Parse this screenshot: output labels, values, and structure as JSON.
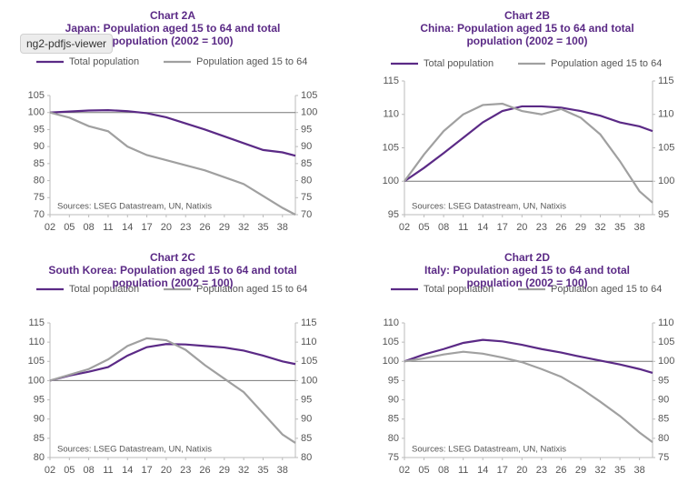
{
  "tooltip": "ng2-pdfjs-viewer",
  "chart_data": [
    {
      "type": "line",
      "chart_label": "Chart 2A",
      "title": "Japan: Population aged 15 to 64 and total population (2002 = 100)",
      "note": "Sources: LSEG Datastream, UN, Natixis",
      "baseline": 100,
      "x": [
        2,
        5,
        8,
        11,
        14,
        17,
        20,
        23,
        26,
        29,
        32,
        35,
        38,
        40
      ],
      "series": [
        {
          "name": "Total population",
          "color": "#5b2a86",
          "values": [
            100,
            100.3,
            100.6,
            100.7,
            100.4,
            99.8,
            98.6,
            96.8,
            95,
            93,
            91,
            89,
            88.3,
            87.3
          ]
        },
        {
          "name": "Population aged 15 to 64",
          "color": "#a0a0a0",
          "values": [
            100,
            98.5,
            96,
            94.5,
            90,
            87.5,
            86,
            84.5,
            83,
            81,
            79,
            75.5,
            72,
            70
          ]
        }
      ],
      "xlim": [
        2,
        40
      ],
      "xticks": [
        {
          "value": 2,
          "label": "02"
        },
        {
          "value": 5,
          "label": "05"
        },
        {
          "value": 8,
          "label": "08"
        },
        11,
        14,
        17,
        20,
        23,
        26,
        29,
        32,
        35,
        38
      ],
      "ylim": [
        70,
        105
      ],
      "yticks": [
        70,
        75,
        80,
        85,
        90,
        95,
        100,
        105
      ]
    },
    {
      "type": "line",
      "chart_label": "Chart 2B",
      "title": "China: Population aged 15 to 64 and total population (2002 = 100)",
      "note": "Sources: LSEG Datastream, UN, Natixis",
      "baseline": 100,
      "x": [
        2,
        5,
        8,
        11,
        14,
        17,
        20,
        23,
        26,
        29,
        32,
        35,
        38,
        40
      ],
      "series": [
        {
          "name": "Total population",
          "color": "#5b2a86",
          "values": [
            100,
            102,
            104.2,
            106.5,
            108.8,
            110.5,
            111.2,
            111.2,
            111,
            110.5,
            109.8,
            108.8,
            108.2,
            107.5
          ]
        },
        {
          "name": "Population aged 15 to 64",
          "color": "#a0a0a0",
          "values": [
            100,
            104,
            107.5,
            110,
            111.4,
            111.6,
            110.5,
            110,
            110.8,
            109.5,
            107,
            103,
            98.5,
            96.8
          ]
        }
      ],
      "xlim": [
        2,
        40
      ],
      "xticks": [
        {
          "value": 2,
          "label": "02"
        },
        {
          "value": 5,
          "label": "05"
        },
        {
          "value": 8,
          "label": "08"
        },
        11,
        14,
        17,
        20,
        23,
        26,
        29,
        32,
        35,
        38
      ],
      "ylim": [
        95,
        115
      ],
      "yticks": [
        95,
        100,
        105,
        110,
        115
      ]
    },
    {
      "type": "line",
      "chart_label": "Chart 2C",
      "title": "South Korea: Population aged 15 to 64 and total population (2002 = 100)",
      "note": "Sources: LSEG Datastream, UN, Natixis",
      "baseline": 100,
      "x": [
        2,
        5,
        8,
        11,
        14,
        17,
        20,
        23,
        26,
        29,
        32,
        35,
        38,
        40
      ],
      "series": [
        {
          "name": "Total population",
          "color": "#5b2a86",
          "values": [
            100,
            101.3,
            102.3,
            103.5,
            106.5,
            108.7,
            109.5,
            109.4,
            109,
            108.6,
            107.8,
            106.5,
            105,
            104.3
          ]
        },
        {
          "name": "Population aged 15 to 64",
          "color": "#a0a0a0",
          "values": [
            100,
            101.5,
            103,
            105.5,
            109,
            111,
            110.5,
            108,
            104,
            100.5,
            97,
            91.5,
            86,
            83.8
          ]
        }
      ],
      "xlim": [
        2,
        40
      ],
      "xticks": [
        {
          "value": 2,
          "label": "02"
        },
        {
          "value": 5,
          "label": "05"
        },
        {
          "value": 8,
          "label": "08"
        },
        11,
        14,
        17,
        20,
        23,
        26,
        29,
        32,
        35,
        38
      ],
      "ylim": [
        80,
        115
      ],
      "yticks": [
        80,
        85,
        90,
        95,
        100,
        105,
        110,
        115
      ]
    },
    {
      "type": "line",
      "chart_label": "Chart 2D",
      "title": "Italy: Population aged 15 to 64 and total population (2002 = 100)",
      "note": "Sources: LSEG Datastream, UN, Natixis",
      "baseline": 100,
      "x": [
        2,
        5,
        8,
        11,
        14,
        17,
        20,
        23,
        26,
        29,
        32,
        35,
        38,
        40
      ],
      "series": [
        {
          "name": "Total population",
          "color": "#5b2a86",
          "values": [
            100,
            101.8,
            103.2,
            104.8,
            105.6,
            105.2,
            104.3,
            103.2,
            102.3,
            101.2,
            100.2,
            99.2,
            98,
            97
          ]
        },
        {
          "name": "Population aged 15 to 64",
          "color": "#a0a0a0",
          "values": [
            100,
            100.8,
            101.8,
            102.5,
            102,
            101,
            99.8,
            98,
            96,
            93,
            89.5,
            85.8,
            81.5,
            79
          ]
        }
      ],
      "xlim": [
        2,
        40
      ],
      "xticks": [
        {
          "value": 2,
          "label": "02"
        },
        {
          "value": 5,
          "label": "05"
        },
        {
          "value": 8,
          "label": "08"
        },
        11,
        14,
        17,
        20,
        23,
        26,
        29,
        32,
        35,
        38
      ],
      "ylim": [
        75,
        110
      ],
      "yticks": [
        75,
        80,
        85,
        90,
        95,
        100,
        105,
        110
      ]
    }
  ]
}
